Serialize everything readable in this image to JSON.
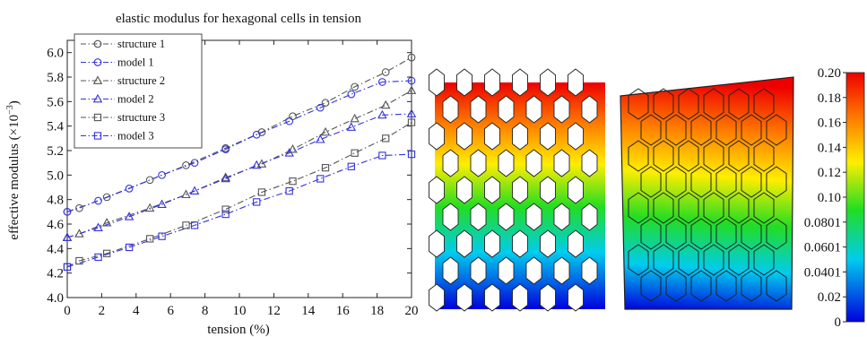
{
  "chart_data": {
    "type": "line",
    "title": "elastic modulus for hexagonal cells in tension",
    "xlabel": "tension (%)",
    "ylabel": "effective modulus (×10",
    "ylabel_exponent": "−3",
    "ylabel_close": ")",
    "xlim": [
      0,
      20
    ],
    "ylim": [
      4.0,
      6.1
    ],
    "xticks": [
      0,
      2,
      4,
      6,
      8,
      10,
      12,
      14,
      16,
      18,
      20
    ],
    "yticks": [
      4.0,
      4.2,
      4.4,
      4.6,
      4.8,
      5.0,
      5.2,
      5.4,
      5.6,
      5.8,
      6.0
    ],
    "ytick_labels": [
      "4.0",
      "4.2",
      "4.4",
      "4.6",
      "4.8",
      "5.0",
      "5.2",
      "5.4",
      "5.6",
      "5.8",
      "6.0"
    ],
    "grid": false,
    "legend_position": "top-left",
    "series": [
      {
        "name": "structure 1",
        "marker": "circle",
        "color": "#555555",
        "dash": "dashdot",
        "x": [
          0,
          0.7,
          2.3,
          4.8,
          6.9,
          9.2,
          11.3,
          13.1,
          15.0,
          16.7,
          18.5,
          20
        ],
        "y": [
          4.7,
          4.73,
          4.82,
          4.96,
          5.08,
          5.22,
          5.35,
          5.48,
          5.59,
          5.72,
          5.84,
          5.96
        ]
      },
      {
        "name": "model 1",
        "marker": "circle",
        "color": "#3333dd",
        "dash": "dashdot",
        "x": [
          0,
          1.8,
          3.6,
          5.5,
          7.4,
          9.2,
          11.0,
          12.9,
          14.7,
          16.5,
          18.3,
          20
        ],
        "y": [
          4.7,
          4.79,
          4.89,
          5.0,
          5.1,
          5.21,
          5.33,
          5.44,
          5.55,
          5.66,
          5.76,
          5.77
        ]
      },
      {
        "name": "structure 2",
        "marker": "triangle",
        "color": "#555555",
        "dash": "dashdot",
        "x": [
          0,
          0.7,
          2.3,
          4.8,
          6.9,
          9.2,
          11.3,
          13.1,
          15.0,
          16.7,
          18.5,
          20
        ],
        "y": [
          4.49,
          4.52,
          4.61,
          4.73,
          4.84,
          4.98,
          5.09,
          5.21,
          5.35,
          5.46,
          5.57,
          5.69
        ]
      },
      {
        "name": "model 2",
        "marker": "triangle",
        "color": "#3333dd",
        "dash": "dashdot",
        "x": [
          0,
          1.8,
          3.6,
          5.5,
          7.4,
          9.2,
          11.0,
          12.9,
          14.7,
          16.5,
          18.3,
          20
        ],
        "y": [
          4.49,
          4.57,
          4.66,
          4.76,
          4.87,
          4.97,
          5.08,
          5.18,
          5.29,
          5.39,
          5.49,
          5.5
        ]
      },
      {
        "name": "structure 3",
        "marker": "square",
        "color": "#555555",
        "dash": "dashdot",
        "x": [
          0,
          0.7,
          2.3,
          4.8,
          6.9,
          9.2,
          11.3,
          13.1,
          15.0,
          16.7,
          18.5,
          20
        ],
        "y": [
          4.25,
          4.3,
          4.36,
          4.48,
          4.59,
          4.72,
          4.86,
          4.95,
          5.06,
          5.18,
          5.3,
          5.43
        ]
      },
      {
        "name": "model 3",
        "marker": "square",
        "color": "#3333dd",
        "dash": "dashdot",
        "x": [
          0,
          1.8,
          3.6,
          5.5,
          7.4,
          9.2,
          11.0,
          12.9,
          14.7,
          16.5,
          18.3,
          20
        ],
        "y": [
          4.25,
          4.33,
          4.41,
          4.5,
          4.59,
          4.68,
          4.78,
          4.87,
          4.97,
          5.07,
          5.16,
          5.17
        ]
      }
    ]
  },
  "colorbar": {
    "tick_labels": [
      "0.20",
      "0.18",
      "0.16",
      "0.14",
      "0.12",
      "0.10",
      "0.0801",
      "0.0601",
      "0.0401",
      "0.02",
      "0"
    ],
    "colormap": [
      "#ff0000",
      "#ff8000",
      "#ffff00",
      "#00ff00",
      "#00ffff",
      "#0000ff"
    ]
  }
}
